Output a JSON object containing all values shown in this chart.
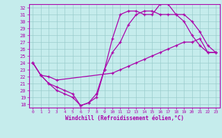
{
  "title": "",
  "xlabel": "Windchill (Refroidissement éolien,°C)",
  "xlim": [
    -0.5,
    23.5
  ],
  "ylim": [
    17.5,
    32.5
  ],
  "xtick_vals": [
    0,
    1,
    2,
    3,
    4,
    5,
    6,
    7,
    8,
    9,
    10,
    11,
    12,
    13,
    14,
    15,
    16,
    17,
    18,
    19,
    20,
    21,
    22,
    23
  ],
  "ytick_vals": [
    18,
    19,
    20,
    21,
    22,
    23,
    24,
    25,
    26,
    27,
    28,
    29,
    30,
    31,
    32
  ],
  "bg_color": "#c5ecec",
  "line_color": "#aa00aa",
  "grid_color": "#99cccc",
  "curve1_x": [
    0,
    1,
    2,
    3,
    4,
    5,
    6,
    7,
    8,
    9,
    10,
    11,
    12,
    13,
    14,
    15,
    16,
    17,
    18,
    19,
    20,
    21,
    22,
    23
  ],
  "curve1_y": [
    24.0,
    22.2,
    21.0,
    20.5,
    20.0,
    19.5,
    17.8,
    18.2,
    19.5,
    23.0,
    27.5,
    31.0,
    31.5,
    31.5,
    31.0,
    31.0,
    32.5,
    32.5,
    31.0,
    30.0,
    28.0,
    26.5,
    25.5,
    25.5
  ],
  "curve2_x": [
    0,
    1,
    2,
    3,
    4,
    5,
    6,
    7,
    8,
    9,
    10,
    11,
    12,
    13,
    14,
    15,
    16,
    17,
    18,
    19,
    20,
    21,
    22,
    23
  ],
  "curve2_y": [
    24.0,
    22.2,
    21.0,
    20.0,
    19.5,
    19.0,
    17.8,
    18.2,
    19.0,
    23.0,
    25.5,
    27.0,
    29.5,
    31.0,
    31.5,
    31.5,
    31.0,
    31.0,
    31.0,
    31.0,
    30.0,
    28.5,
    26.5,
    25.5
  ],
  "curve3_x": [
    0,
    1,
    2,
    3,
    10,
    11,
    12,
    13,
    14,
    15,
    16,
    17,
    18,
    19,
    20,
    21,
    22,
    23
  ],
  "curve3_y": [
    24.0,
    22.2,
    22.0,
    21.5,
    22.5,
    23.0,
    23.5,
    24.0,
    24.5,
    25.0,
    25.5,
    26.0,
    26.5,
    27.0,
    27.0,
    27.5,
    25.5,
    25.5
  ]
}
